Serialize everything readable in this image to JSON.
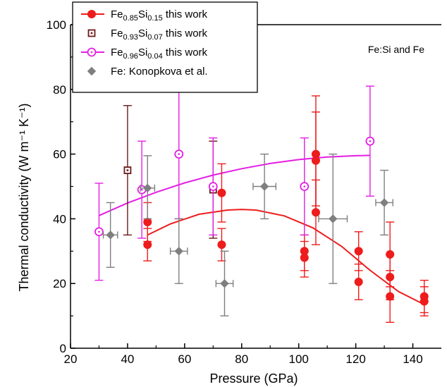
{
  "chart_data": {
    "type": "scatter",
    "xlabel": "Pressure (GPa)",
    "ylabel": "Thermal conductivity (W m⁻¹ K⁻¹)",
    "xlim": [
      20,
      150
    ],
    "ylim": [
      0,
      100
    ],
    "x_ticks": [
      20,
      40,
      60,
      80,
      100,
      120,
      140
    ],
    "y_ticks": [
      0,
      20,
      40,
      60,
      80,
      100
    ],
    "annotation": "Fe:Si and Fe",
    "legend": {
      "placement": "top-left",
      "frame": true
    },
    "grid": false,
    "series": [
      {
        "name": "Fe0.85Si0.15 this work",
        "name_parts": {
          "base": "Fe",
          "sub1": "0.85",
          "mid": "Si",
          "sub2": "0.15",
          "suffix": " this work"
        },
        "marker": "filled-circle",
        "color": "#ee1c1c",
        "points": [
          {
            "x": 47,
            "y": 39,
            "ylo": 33,
            "yhi": 45
          },
          {
            "x": 47,
            "y": 32,
            "ylo": 27,
            "yhi": 37
          },
          {
            "x": 73,
            "y": 48,
            "ylo": 39,
            "yhi": 57
          },
          {
            "x": 73,
            "y": 32,
            "ylo": 27,
            "yhi": 37
          },
          {
            "x": 102,
            "y": 30,
            "ylo": 24,
            "yhi": 35
          },
          {
            "x": 102,
            "y": 28,
            "ylo": 22,
            "yhi": 33
          },
          {
            "x": 106,
            "y": 60,
            "ylo": 42,
            "yhi": 78
          },
          {
            "x": 106,
            "y": 58,
            "ylo": 44,
            "yhi": 73
          },
          {
            "x": 106,
            "y": 42,
            "ylo": 32,
            "yhi": 52
          },
          {
            "x": 121,
            "y": 30,
            "ylo": 24,
            "yhi": 36
          },
          {
            "x": 121,
            "y": 20.5,
            "ylo": 15,
            "yhi": 26
          },
          {
            "x": 132,
            "y": 29,
            "ylo": 19,
            "yhi": 39
          },
          {
            "x": 132,
            "y": 22,
            "ylo": 15,
            "yhi": 29
          },
          {
            "x": 132,
            "y": 16,
            "ylo": 8,
            "yhi": 24
          },
          {
            "x": 144,
            "y": 16,
            "ylo": 11,
            "yhi": 21
          },
          {
            "x": 144,
            "y": 14.5,
            "ylo": 10,
            "yhi": 19
          }
        ],
        "fit": {
          "x": [
            47,
            55,
            65,
            75,
            80,
            85,
            95,
            105,
            115,
            125,
            135,
            144
          ],
          "y": [
            35,
            38.4,
            41.4,
            42.7,
            42.9,
            42.7,
            40.9,
            37.2,
            31.5,
            24.1,
            17.5,
            13.5
          ]
        }
      },
      {
        "name": "Fe0.93Si0.07 this work",
        "name_parts": {
          "base": "Fe",
          "sub1": "0.93",
          "mid": "Si",
          "sub2": "0.07",
          "suffix": " this work"
        },
        "marker": "open-square-dot",
        "color": "#6b1a1a",
        "points": [
          {
            "x": 40,
            "y": 55,
            "ylo": 35,
            "yhi": 75
          },
          {
            "x": 70,
            "y": 49,
            "ylo": 34,
            "yhi": 64
          }
        ]
      },
      {
        "name": "Fe0.96Si0.04 this work",
        "name_parts": {
          "base": "Fe",
          "sub1": "0.96",
          "mid": "Si",
          "sub2": "0.04",
          "suffix": " this work"
        },
        "marker": "open-circle-dot",
        "color": "#e41ee4",
        "points": [
          {
            "x": 30,
            "y": 36,
            "ylo": 21,
            "yhi": 51
          },
          {
            "x": 45,
            "y": 49,
            "ylo": 34,
            "yhi": 64
          },
          {
            "x": 58,
            "y": 60,
            "ylo": 40,
            "yhi": 80
          },
          {
            "x": 70,
            "y": 50,
            "ylo": 35,
            "yhi": 65
          },
          {
            "x": 102,
            "y": 50,
            "ylo": 35,
            "yhi": 65
          },
          {
            "x": 125,
            "y": 64,
            "ylo": 47,
            "yhi": 81
          }
        ],
        "fit": {
          "x": [
            30,
            40,
            50,
            60,
            70,
            80,
            90,
            100,
            110,
            120,
            125
          ],
          "y": [
            41,
            44.9,
            48.2,
            51.1,
            53.5,
            55.5,
            57.1,
            58.3,
            59.1,
            59.5,
            59.6
          ]
        }
      },
      {
        "name": "Fe: Konopkova et al.",
        "marker": "diamond",
        "color": "#7f7f7f",
        "points": [
          {
            "x": 34,
            "y": 35,
            "ylo": 25,
            "yhi": 45,
            "xerr": 2.5
          },
          {
            "x": 47,
            "y": 49.5,
            "ylo": 40,
            "yhi": 59.5,
            "xerr": 2.5
          },
          {
            "x": 58,
            "y": 30,
            "ylo": 20,
            "yhi": 40,
            "xerr": 3
          },
          {
            "x": 74,
            "y": 20,
            "ylo": 10,
            "yhi": 30,
            "xerr": 3
          },
          {
            "x": 88,
            "y": 50,
            "ylo": 40,
            "yhi": 60,
            "xerr": 4
          },
          {
            "x": 112,
            "y": 40,
            "ylo": 20,
            "yhi": 60,
            "xerr": 5
          },
          {
            "x": 130,
            "y": 45,
            "ylo": 35,
            "yhi": 55,
            "xerr": 3
          }
        ]
      }
    ]
  }
}
